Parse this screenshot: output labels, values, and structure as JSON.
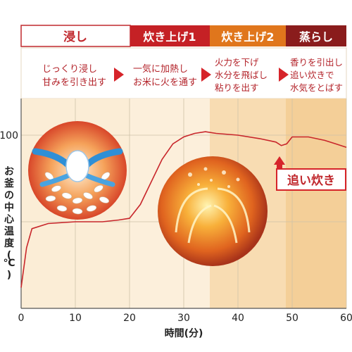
{
  "colors": {
    "soak": "#c0282d",
    "boil1": "#c52125",
    "boil2": "#e0761c",
    "steam": "#8a1c1c",
    "soak_bg": "#fbedd6",
    "boil1_bg": "#fbedd6",
    "boil2_bg": "#f8dcb2",
    "steam_bg": "#f4cf98",
    "curve": "#c8262b",
    "grid": "#cfc2a8",
    "arrow": "#d6242a"
  },
  "phases": [
    {
      "title": "浸し",
      "desc": [
        "じっくり浸し",
        "甘みを引き出す"
      ]
    },
    {
      "title": "炊き上げ1",
      "desc": [
        "一気に加熱し",
        "お米に火を通す"
      ]
    },
    {
      "title": "炊き上げ2",
      "desc": [
        "火力を下げ",
        "水分を飛ばし",
        "粘りを出す"
      ]
    },
    {
      "title": "蒸らし",
      "desc": [
        "香りを引出し",
        "追い炊きで",
        "水気をとばす"
      ]
    }
  ],
  "callout": "追い炊き",
  "chart_data": {
    "type": "line",
    "xlabel": "時間(分)",
    "ylabel": "お釜の中心温度(℃)",
    "x_ticks": [
      0,
      10,
      20,
      30,
      40,
      50,
      60
    ],
    "y_ticks": [
      100
    ],
    "xlim": [
      0,
      60
    ],
    "ylim": [
      0,
      110
    ],
    "series": [
      {
        "x": [
          0,
          1,
          2,
          5,
          10,
          15,
          18,
          20,
          22,
          24,
          26,
          28,
          30,
          32,
          34,
          36,
          40,
          44,
          47,
          48,
          49,
          50,
          53,
          56,
          58,
          60
        ],
        "y": [
          12,
          35,
          46,
          49,
          50,
          50,
          51,
          52,
          60,
          73,
          86,
          95,
          99,
          101,
          102,
          101,
          100,
          98,
          96,
          94,
          95,
          99,
          99,
          97,
          95,
          93
        ]
      }
    ],
    "phase_boundaries": [
      20,
      35,
      48
    ]
  }
}
